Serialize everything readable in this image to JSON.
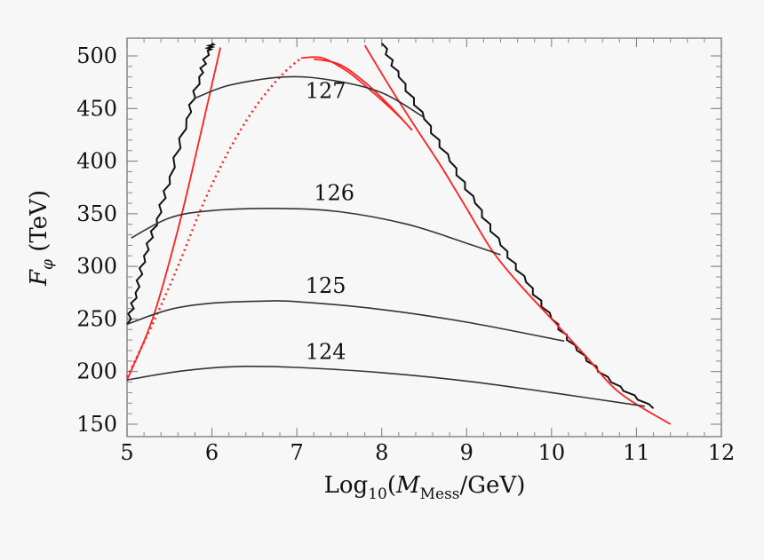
{
  "chart_data": {
    "type": "line",
    "xlabel_main": "Log",
    "xlabel_sub": "10",
    "xlabel_paren_open": "(",
    "xlabel_var": "M",
    "xlabel_var_sub": "Mess",
    "xlabel_unit": "/GeV)",
    "ylabel_var": "F",
    "ylabel_sub": "φ",
    "ylabel_unit": " (TeV)",
    "xlim": [
      5,
      12
    ],
    "ylim": [
      150,
      515
    ],
    "xticks": [
      "5",
      "6",
      "7",
      "8",
      "9",
      "10",
      "11",
      "12"
    ],
    "yticks": [
      "150",
      "200",
      "250",
      "300",
      "350",
      "400",
      "450",
      "500"
    ],
    "grid": false,
    "colors": {
      "contour": "#333333",
      "boundary": "#111111",
      "red": "#ff2020"
    },
    "contours": [
      {
        "label": "124",
        "label_at": [
          7.1,
          212
        ],
        "points": [
          [
            5,
            192
          ],
          [
            5.5,
            199
          ],
          [
            6,
            203.5
          ],
          [
            6.4,
            205
          ],
          [
            7,
            204
          ],
          [
            8,
            199
          ],
          [
            9,
            191
          ],
          [
            10,
            180
          ],
          [
            11.1,
            167
          ]
        ]
      },
      {
        "label": "125",
        "label_at": [
          7.1,
          275
        ],
        "points": [
          [
            5,
            245
          ],
          [
            5.5,
            259
          ],
          [
            6,
            265
          ],
          [
            6.6,
            267
          ],
          [
            7,
            266.5
          ],
          [
            8,
            259
          ],
          [
            9,
            247
          ],
          [
            10.15,
            229
          ]
        ]
      },
      {
        "label": "126",
        "label_at": [
          7.2,
          363
        ],
        "points": [
          [
            5.05,
            327
          ],
          [
            5.5,
            346
          ],
          [
            6,
            353
          ],
          [
            6.8,
            355
          ],
          [
            7.5,
            352
          ],
          [
            8.3,
            340
          ],
          [
            9,
            322
          ],
          [
            9.4,
            311
          ]
        ]
      },
      {
        "label": "127",
        "label_at": [
          7.1,
          460
        ],
        "points": [
          [
            5.78,
            459
          ],
          [
            6.2,
            472
          ],
          [
            6.85,
            480
          ],
          [
            7.4,
            477
          ],
          [
            8,
            465
          ],
          [
            8.49,
            442
          ]
        ]
      }
    ],
    "black_boundaries": [
      {
        "points": [
          [
            5,
            245
          ],
          [
            5.1,
            275
          ],
          [
            5.2,
            310
          ],
          [
            5.35,
            345
          ],
          [
            5.5,
            385
          ],
          [
            5.7,
            440
          ],
          [
            5.85,
            480
          ],
          [
            5.95,
            505
          ],
          [
            6.0,
            512
          ]
        ]
      },
      {
        "points": [
          [
            8.0,
            512
          ],
          [
            8.2,
            480
          ],
          [
            8.5,
            440
          ],
          [
            8.8,
            400
          ],
          [
            9.1,
            360
          ],
          [
            9.4,
            320
          ],
          [
            9.7,
            285
          ],
          [
            10.0,
            250
          ],
          [
            10.3,
            220
          ],
          [
            10.7,
            190
          ],
          [
            11.2,
            165
          ]
        ]
      }
    ],
    "red_lines": [
      {
        "style": "solid",
        "points": [
          [
            5,
            192
          ],
          [
            5.3,
            250
          ],
          [
            5.6,
            335
          ],
          [
            5.85,
            420
          ],
          [
            6.1,
            508
          ]
        ]
      },
      {
        "style": "dotted",
        "points": [
          [
            5,
            195
          ],
          [
            5.3,
            245
          ],
          [
            5.6,
            300
          ],
          [
            5.9,
            360
          ],
          [
            6.2,
            410
          ],
          [
            6.5,
            450
          ],
          [
            6.8,
            480
          ],
          [
            7.05,
            498
          ]
        ]
      },
      {
        "style": "solid",
        "points": [
          [
            7.05,
            498
          ],
          [
            7.3,
            498
          ],
          [
            7.6,
            485
          ],
          [
            7.9,
            465
          ],
          [
            8.2,
            443
          ],
          [
            8.35,
            430
          ],
          [
            8.1,
            452
          ],
          [
            7.8,
            475
          ],
          [
            7.5,
            492
          ],
          [
            7.2,
            497
          ]
        ]
      },
      {
        "style": "solid",
        "points": [
          [
            7.8,
            510
          ],
          [
            8.1,
            470
          ],
          [
            8.4,
            432
          ],
          [
            8.7,
            395
          ],
          [
            9.0,
            355
          ],
          [
            9.3,
            315
          ],
          [
            9.6,
            285
          ],
          [
            10.0,
            250
          ],
          [
            10.4,
            215
          ],
          [
            10.8,
            180
          ],
          [
            11.4,
            150
          ]
        ]
      }
    ]
  }
}
